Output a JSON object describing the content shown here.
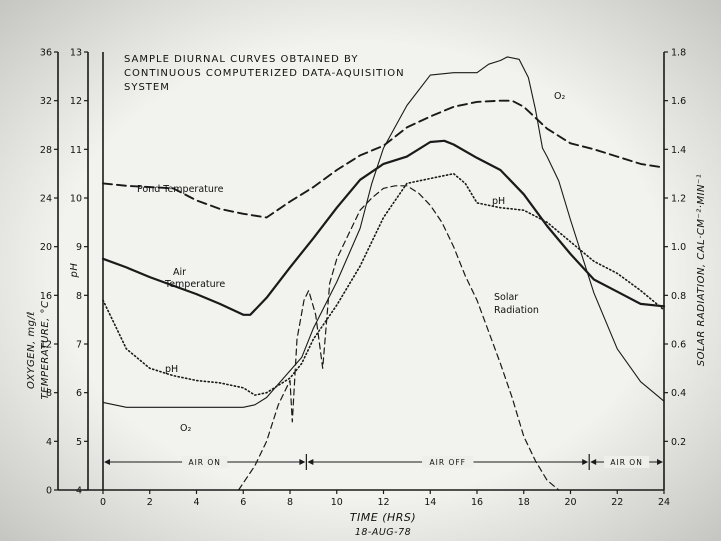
{
  "chart_data": {
    "type": "line",
    "title_lines": [
      "SAMPLE DIURNAL CURVES OBTAINED BY",
      "CONTINUOUS COMPUTERIZED DATA-AQUISITION",
      "SYSTEM"
    ],
    "xlabel": "TIME (HRS)",
    "date": "18-AUG-78",
    "xlim": [
      0,
      24
    ],
    "x_ticks": [
      "0",
      "2",
      "4",
      "6",
      "8",
      "10",
      "12",
      "14",
      "16",
      "18",
      "20",
      "22",
      "24"
    ],
    "left_outer_axis": {
      "label_line1": "OXYGEN, mg/ℓ",
      "label_line2": "TEMPERATURE, °C",
      "ylim": [
        0,
        36
      ],
      "ticks": [
        "0",
        "4",
        "8",
        "12",
        "16",
        "20",
        "24",
        "28",
        "32",
        "36"
      ]
    },
    "left_inner_axis": {
      "label": "pH",
      "ylim": [
        4,
        13
      ],
      "ticks": [
        "4",
        "5",
        "6",
        "7",
        "8",
        "9",
        "10",
        "11",
        "12",
        "13"
      ]
    },
    "right_axis": {
      "label": "SOLAR RADIATION, CAL·CM⁻²·MIN⁻¹",
      "ylim": [
        0,
        1.8
      ],
      "ticks": [
        "0.2",
        "0.4",
        "0.6",
        "0.8",
        "1.0",
        "1.2",
        "1.4",
        "1.6",
        "1.8"
      ],
      "tick_values": [
        0.2,
        0.4,
        0.6,
        0.8,
        1.0,
        1.2,
        1.4,
        1.6,
        1.8
      ]
    },
    "series": [
      {
        "name": "Pond Temperature",
        "label_lines": [
          "Pond Temperature"
        ],
        "axis": "left_outer",
        "style": "dashed",
        "x": [
          0,
          1,
          2,
          3,
          4,
          5,
          6,
          7,
          8,
          9,
          10,
          11,
          12,
          13,
          14,
          15,
          16,
          17,
          17.5,
          18,
          19,
          20,
          21,
          22,
          23,
          24
        ],
        "y": [
          25.2,
          25,
          24.9,
          24.8,
          23.8,
          23.1,
          22.7,
          22.4,
          23.7,
          24.9,
          26.3,
          27.5,
          28.3,
          29.8,
          30.7,
          31.5,
          31.9,
          32,
          32,
          31.5,
          29.7,
          28.5,
          28,
          27.4,
          26.8,
          26.5
        ]
      },
      {
        "name": "Air Temperature",
        "label_lines": [
          "Air",
          "Temperature"
        ],
        "axis": "left_outer",
        "style": "solid-thick",
        "x": [
          0,
          1,
          2,
          3,
          4,
          5,
          6,
          6.3,
          7,
          8,
          9,
          10,
          11,
          12,
          13,
          14,
          14.6,
          15,
          16,
          17,
          18,
          19,
          20,
          21,
          22,
          23,
          24
        ],
        "y": [
          19,
          18.3,
          17.5,
          16.8,
          16.1,
          15.3,
          14.4,
          14.4,
          15.8,
          18.3,
          20.7,
          23.2,
          25.5,
          26.8,
          27.4,
          28.6,
          28.7,
          28.4,
          27.3,
          26.3,
          24.3,
          21.7,
          19.4,
          17.3,
          16.3,
          15.3,
          15.1
        ]
      },
      {
        "name": "pH",
        "label_lines": [
          "pH"
        ],
        "label_lines_2": [
          "pH"
        ],
        "axis": "left_inner",
        "style": "dotted",
        "x": [
          0,
          0.5,
          1,
          2,
          3,
          4,
          5,
          6,
          6.5,
          7,
          8,
          8.5,
          9,
          10,
          11,
          12,
          13,
          14,
          15,
          15.5,
          16,
          17,
          18,
          19,
          20,
          21,
          22,
          23,
          24
        ],
        "y": [
          7.9,
          7.4,
          6.9,
          6.5,
          6.35,
          6.25,
          6.2,
          6.1,
          5.95,
          6.0,
          6.3,
          6.6,
          7.1,
          7.8,
          8.6,
          9.6,
          10.3,
          10.4,
          10.5,
          10.3,
          9.9,
          9.8,
          9.75,
          9.5,
          9.1,
          8.7,
          8.45,
          8.1,
          7.7
        ]
      },
      {
        "name": "O₂",
        "label_lines": [
          "O₂"
        ],
        "label_lines_2": [
          "O₂"
        ],
        "axis": "left_outer",
        "style": "solid-thin",
        "x": [
          0,
          1,
          2,
          3,
          4,
          5,
          6,
          6.5,
          7,
          7.5,
          8,
          8.5,
          9,
          10,
          11,
          11.5,
          12,
          13,
          14,
          15,
          16,
          16.5,
          17,
          17.3,
          17.8,
          18.2,
          18.5,
          18.8,
          19,
          19.5,
          20,
          21,
          22,
          23,
          24
        ],
        "y": [
          7.2,
          6.8,
          6.8,
          6.8,
          6.8,
          6.8,
          6.8,
          7.0,
          7.6,
          8.7,
          9.8,
          10.9,
          13.3,
          17.1,
          21.5,
          25.2,
          28.1,
          31.6,
          34.1,
          34.3,
          34.3,
          35.0,
          35.3,
          35.6,
          35.4,
          33.9,
          31.3,
          28.1,
          27.4,
          25.4,
          22.2,
          16.2,
          11.6,
          8.9,
          7.3
        ]
      },
      {
        "name": "Solar Radiation",
        "label_lines": [
          "Solar",
          "Radiation"
        ],
        "axis": "right",
        "style": "dashed-thin",
        "x": [
          5.8,
          6.5,
          7,
          7.5,
          8,
          8.1,
          8.3,
          8.6,
          8.8,
          9.1,
          9.4,
          9.7,
          10,
          10.5,
          11,
          11.5,
          12,
          12.5,
          13,
          13.5,
          14,
          14.5,
          15,
          15.5,
          16,
          16.5,
          17,
          17.5,
          18,
          18.5,
          19,
          19.5
        ],
        "y": [
          0,
          0.1,
          0.2,
          0.35,
          0.45,
          0.28,
          0.62,
          0.78,
          0.82,
          0.72,
          0.5,
          0.85,
          0.95,
          1.05,
          1.15,
          1.2,
          1.24,
          1.25,
          1.25,
          1.22,
          1.17,
          1.1,
          1.0,
          0.88,
          0.78,
          0.65,
          0.52,
          0.38,
          0.22,
          0.12,
          0.04,
          0
        ]
      }
    ],
    "air_periods": [
      {
        "label": "AIR ON",
        "start": 0,
        "end": 8.7
      },
      {
        "label": "AIR OFF",
        "start": 8.7,
        "end": 20.8
      },
      {
        "label": "AIR ON",
        "start": 20.8,
        "end": 24
      }
    ],
    "grid": false
  }
}
